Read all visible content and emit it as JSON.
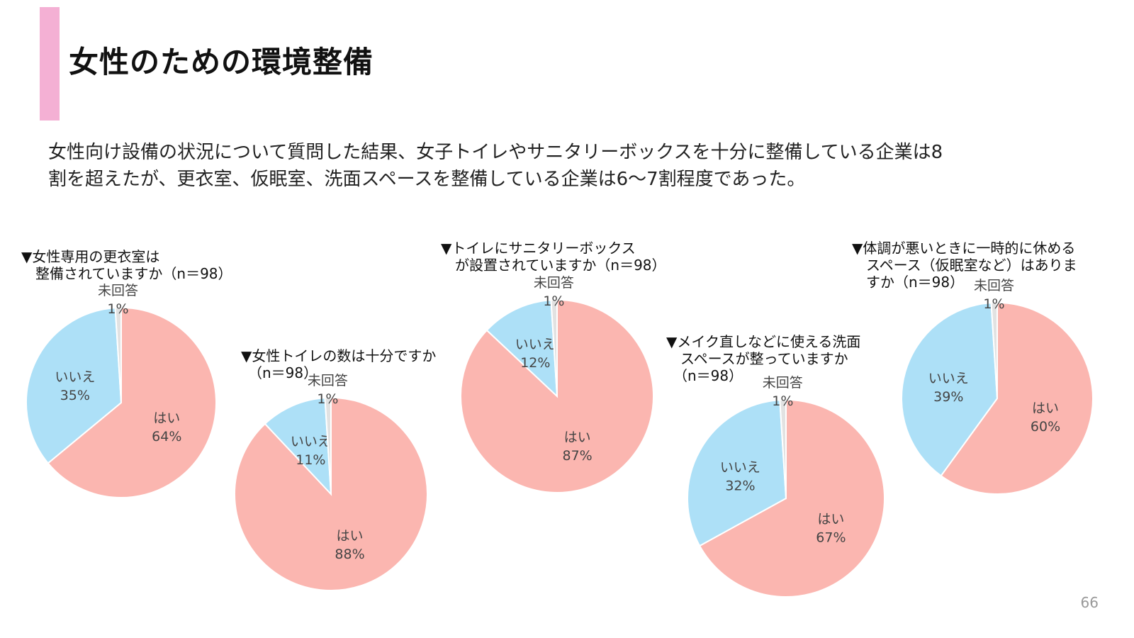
{
  "title": "女性のための環境整備",
  "summary_lines": [
    "女性向け設備の状況について質問した結果、女子トイレやサニタリーボックスを十分に整備している企業は8",
    "割を超えたが、更衣室、仮眠室、洗面スペースを整備している企業は6〜7割程度であった。"
  ],
  "colors": {
    "accent": "#f4b0d4",
    "yes": "#fbb6b0",
    "no": "#ade0f7",
    "na": "#e2e2e2"
  },
  "page_number": "66",
  "chart_data": [
    {
      "type": "pie",
      "title_lines": [
        "▼女性専用の更衣室は",
        "　整備されていますか（n＝98）"
      ],
      "n": 98,
      "slices": [
        {
          "label": "はい",
          "value": 64,
          "text": "64%"
        },
        {
          "label": "いいえ",
          "value": 35,
          "text": "35%"
        },
        {
          "label": "未回答",
          "value": 1,
          "text": "1%"
        }
      ]
    },
    {
      "type": "pie",
      "title_lines": [
        "▼女性トイレの数は十分ですか",
        "　（n＝98）"
      ],
      "n": 98,
      "slices": [
        {
          "label": "はい",
          "value": 88,
          "text": "88%"
        },
        {
          "label": "いいえ",
          "value": 11,
          "text": "11%"
        },
        {
          "label": "未回答",
          "value": 1,
          "text": "1%"
        }
      ]
    },
    {
      "type": "pie",
      "title_lines": [
        "▼トイレにサニタリーボックス",
        "　が設置されていますか（n＝98）"
      ],
      "n": 98,
      "slices": [
        {
          "label": "はい",
          "value": 87,
          "text": "87%"
        },
        {
          "label": "いいえ",
          "value": 12,
          "text": "12%"
        },
        {
          "label": "未回答",
          "value": 1,
          "text": "1%"
        }
      ]
    },
    {
      "type": "pie",
      "title_lines": [
        "▼メイク直しなどに使える洗面",
        "　スペースが整っていますか",
        "　（n＝98）"
      ],
      "n": 98,
      "slices": [
        {
          "label": "はい",
          "value": 67,
          "text": "67%"
        },
        {
          "label": "いいえ",
          "value": 32,
          "text": "32%"
        },
        {
          "label": "未回答",
          "value": 1,
          "text": "1%"
        }
      ]
    },
    {
      "type": "pie",
      "title_lines": [
        "▼体調が悪いときに一時的に休める",
        "　スペース（仮眠室など）はありま",
        "　すか（n＝98）"
      ],
      "n": 98,
      "slices": [
        {
          "label": "はい",
          "value": 60,
          "text": "60%"
        },
        {
          "label": "いいえ",
          "value": 39,
          "text": "39%"
        },
        {
          "label": "未回答",
          "value": 1,
          "text": "1%"
        }
      ]
    }
  ]
}
